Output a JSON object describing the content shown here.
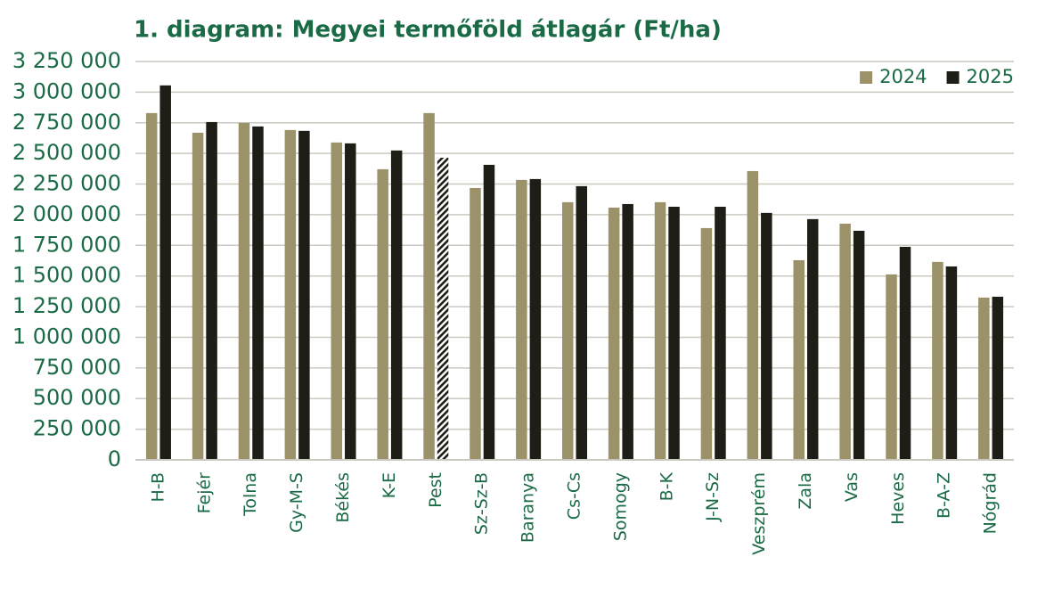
{
  "chart_data": {
    "type": "bar",
    "title": "1. diagram: Megyei termőföld átlagár (Ft/ha)",
    "categories": [
      "H-B",
      "Fejér",
      "Tolna",
      "Gy-M-S",
      "Békés",
      "K-E",
      "Pest",
      "Sz-Sz-B",
      "Baranya",
      "Cs-Cs",
      "Somogy",
      "B-K",
      "J-N-Sz",
      "Veszprém",
      "Zala",
      "Vas",
      "Heves",
      "B-A-Z",
      "Nógrád"
    ],
    "series": [
      {
        "name": "2024",
        "color": "#9b9269",
        "values": [
          2829000,
          2669000,
          2749000,
          2691000,
          2589000,
          2371000,
          2829000,
          2218000,
          2284000,
          2102000,
          2058000,
          2102000,
          1891000,
          2356000,
          1629000,
          1927000,
          1513000,
          1615000,
          1324000
        ]
      },
      {
        "name": "2025",
        "color": "#1f1e16",
        "hatched": [
          "Pest"
        ],
        "values": [
          3055000,
          2756000,
          2720000,
          2684000,
          2582000,
          2524000,
          2465000,
          2407000,
          2291000,
          2233000,
          2087000,
          2065000,
          2065000,
          2015000,
          1964000,
          1869000,
          1738000,
          1578000,
          1331000
        ]
      }
    ],
    "ylim": [
      0,
      3250000
    ],
    "yticks": [
      0,
      {
        "value": 250000,
        "label": "250 000"
      },
      {
        "value": 500000,
        "label": "500 000"
      },
      {
        "value": 750000,
        "label": "750 000"
      },
      {
        "value": 1000000,
        "label": "1 000 000"
      },
      {
        "value": 1250000,
        "label": "1 250 000"
      },
      {
        "value": 1500000,
        "label": "1 500 000"
      },
      {
        "value": 1750000,
        "label": "1 750 000"
      },
      {
        "value": 2000000,
        "label": "2 000 000"
      },
      {
        "value": 2250000,
        "label": "2 250 000"
      },
      {
        "value": 2500000,
        "label": "2 500 000"
      },
      {
        "value": 2750000,
        "label": "2 750 000"
      },
      {
        "value": 3000000,
        "label": "3 000 000"
      },
      {
        "value": 3250000,
        "label": "3 250 000"
      }
    ],
    "grid": true,
    "legend": "top-right"
  }
}
